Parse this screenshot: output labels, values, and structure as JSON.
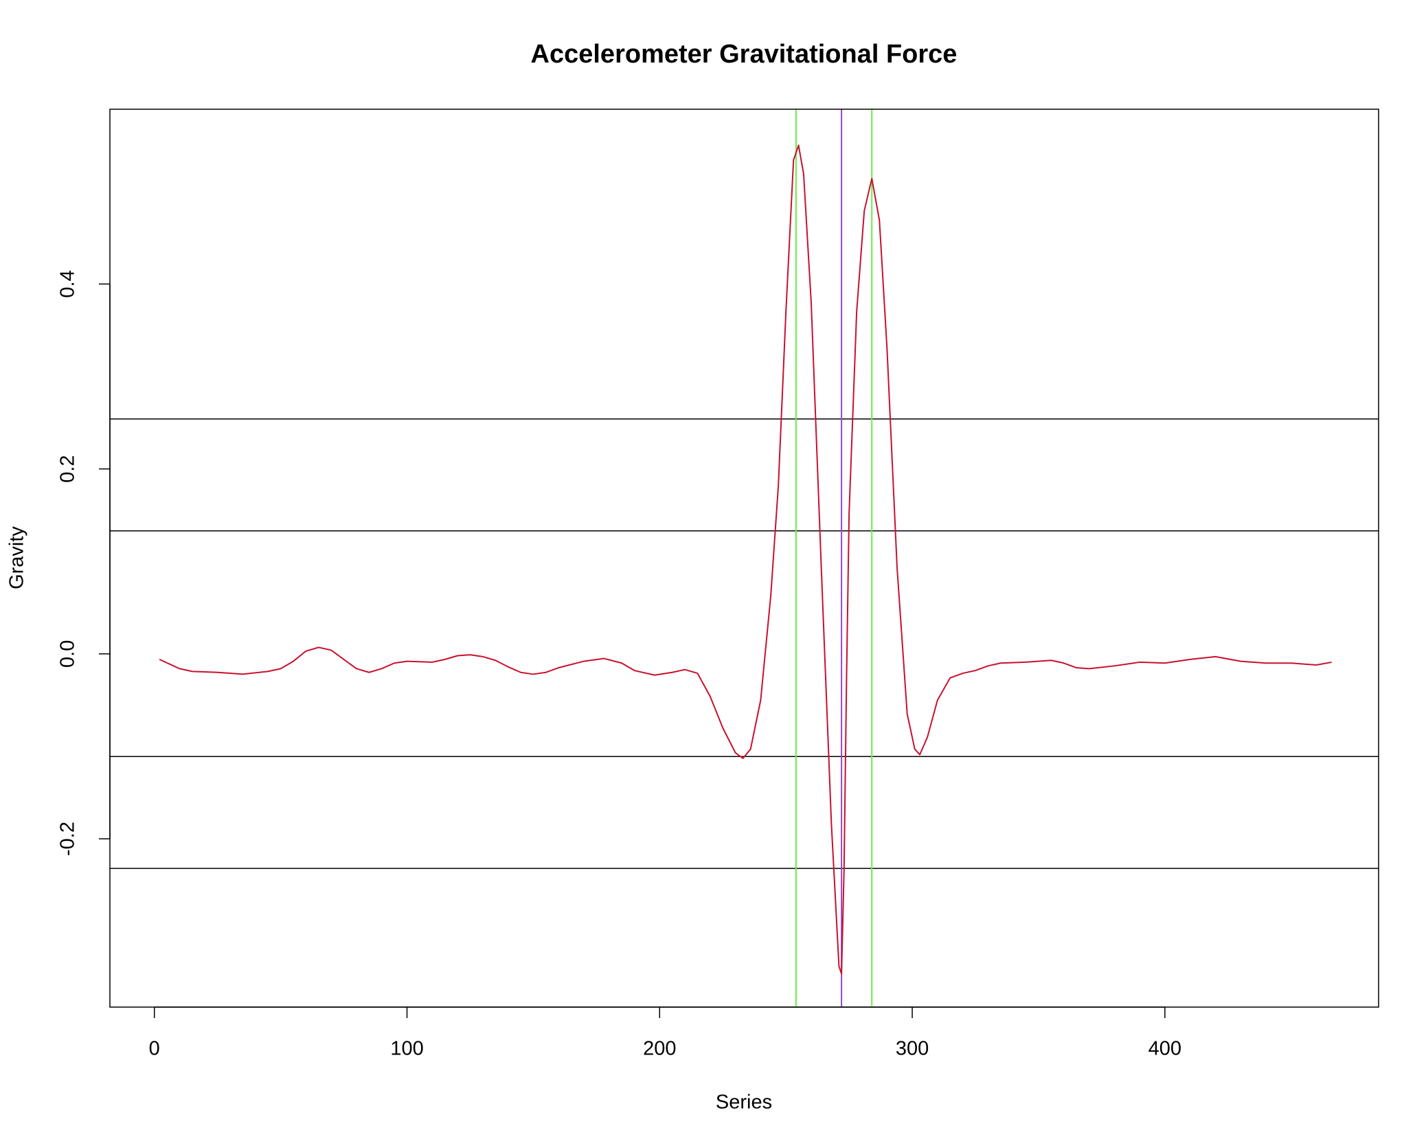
{
  "chart_data": {
    "type": "line",
    "title": "Accelerometer Gravitational Force",
    "x_label": "Series",
    "y_label": "Gravity",
    "x": [
      2,
      10,
      15,
      25,
      35,
      45,
      50,
      55,
      60,
      65,
      70,
      75,
      80,
      85,
      90,
      95,
      100,
      110,
      115,
      120,
      125,
      130,
      135,
      140,
      145,
      150,
      155,
      160,
      170,
      178,
      185,
      190,
      198,
      205,
      210,
      215,
      220,
      225,
      230,
      233,
      236,
      240,
      244,
      247,
      250,
      253,
      255,
      257,
      260,
      264,
      268,
      271,
      272,
      273,
      274,
      275,
      278,
      281,
      284,
      287,
      290,
      294,
      298,
      301,
      303,
      306,
      310,
      315,
      320,
      325,
      330,
      335,
      345,
      355,
      360,
      365,
      370,
      380,
      390,
      400,
      410,
      420,
      430,
      440,
      450,
      460,
      466
    ],
    "values": [
      -0.006,
      -0.016,
      -0.019,
      -0.02,
      -0.022,
      -0.019,
      -0.016,
      -0.008,
      0.003,
      0.007,
      0.004,
      -0.006,
      -0.016,
      -0.02,
      -0.016,
      -0.01,
      -0.008,
      -0.009,
      -0.006,
      -0.002,
      -0.001,
      -0.003,
      -0.007,
      -0.014,
      -0.02,
      -0.022,
      -0.02,
      -0.015,
      -0.008,
      -0.005,
      -0.01,
      -0.018,
      -0.023,
      -0.02,
      -0.017,
      -0.021,
      -0.046,
      -0.08,
      -0.107,
      -0.113,
      -0.103,
      -0.05,
      0.063,
      0.182,
      0.37,
      0.534,
      0.55,
      0.519,
      0.38,
      0.093,
      -0.184,
      -0.338,
      -0.346,
      -0.234,
      -0.026,
      0.152,
      0.37,
      0.479,
      0.514,
      0.469,
      0.331,
      0.093,
      -0.065,
      -0.103,
      -0.109,
      -0.09,
      -0.05,
      -0.026,
      -0.021,
      -0.018,
      -0.013,
      -0.01,
      -0.009,
      -0.007,
      -0.01,
      -0.015,
      -0.016,
      -0.013,
      -0.009,
      -0.01,
      -0.006,
      -0.003,
      -0.008,
      -0.01,
      -0.01,
      -0.012,
      -0.009
    ],
    "color": "#c8102e",
    "hlines": [
      0.254,
      0.133,
      -0.111,
      -0.232
    ],
    "hline_color": "#000000",
    "vlines": [
      {
        "value": 254,
        "color": "#66ee44"
      },
      {
        "value": 272,
        "color": "#9944cc"
      },
      {
        "value": 284,
        "color": "#66ee44"
      }
    ],
    "xlim": [
      -17.6,
      484.6
    ],
    "ylim": [
      -0.382,
      0.589
    ],
    "xticks": [
      0,
      100,
      200,
      300,
      400
    ],
    "yticks": [
      -0.2,
      {
        "value": 0,
        "label": "0.0"
      },
      0.2,
      0.4
    ]
  }
}
